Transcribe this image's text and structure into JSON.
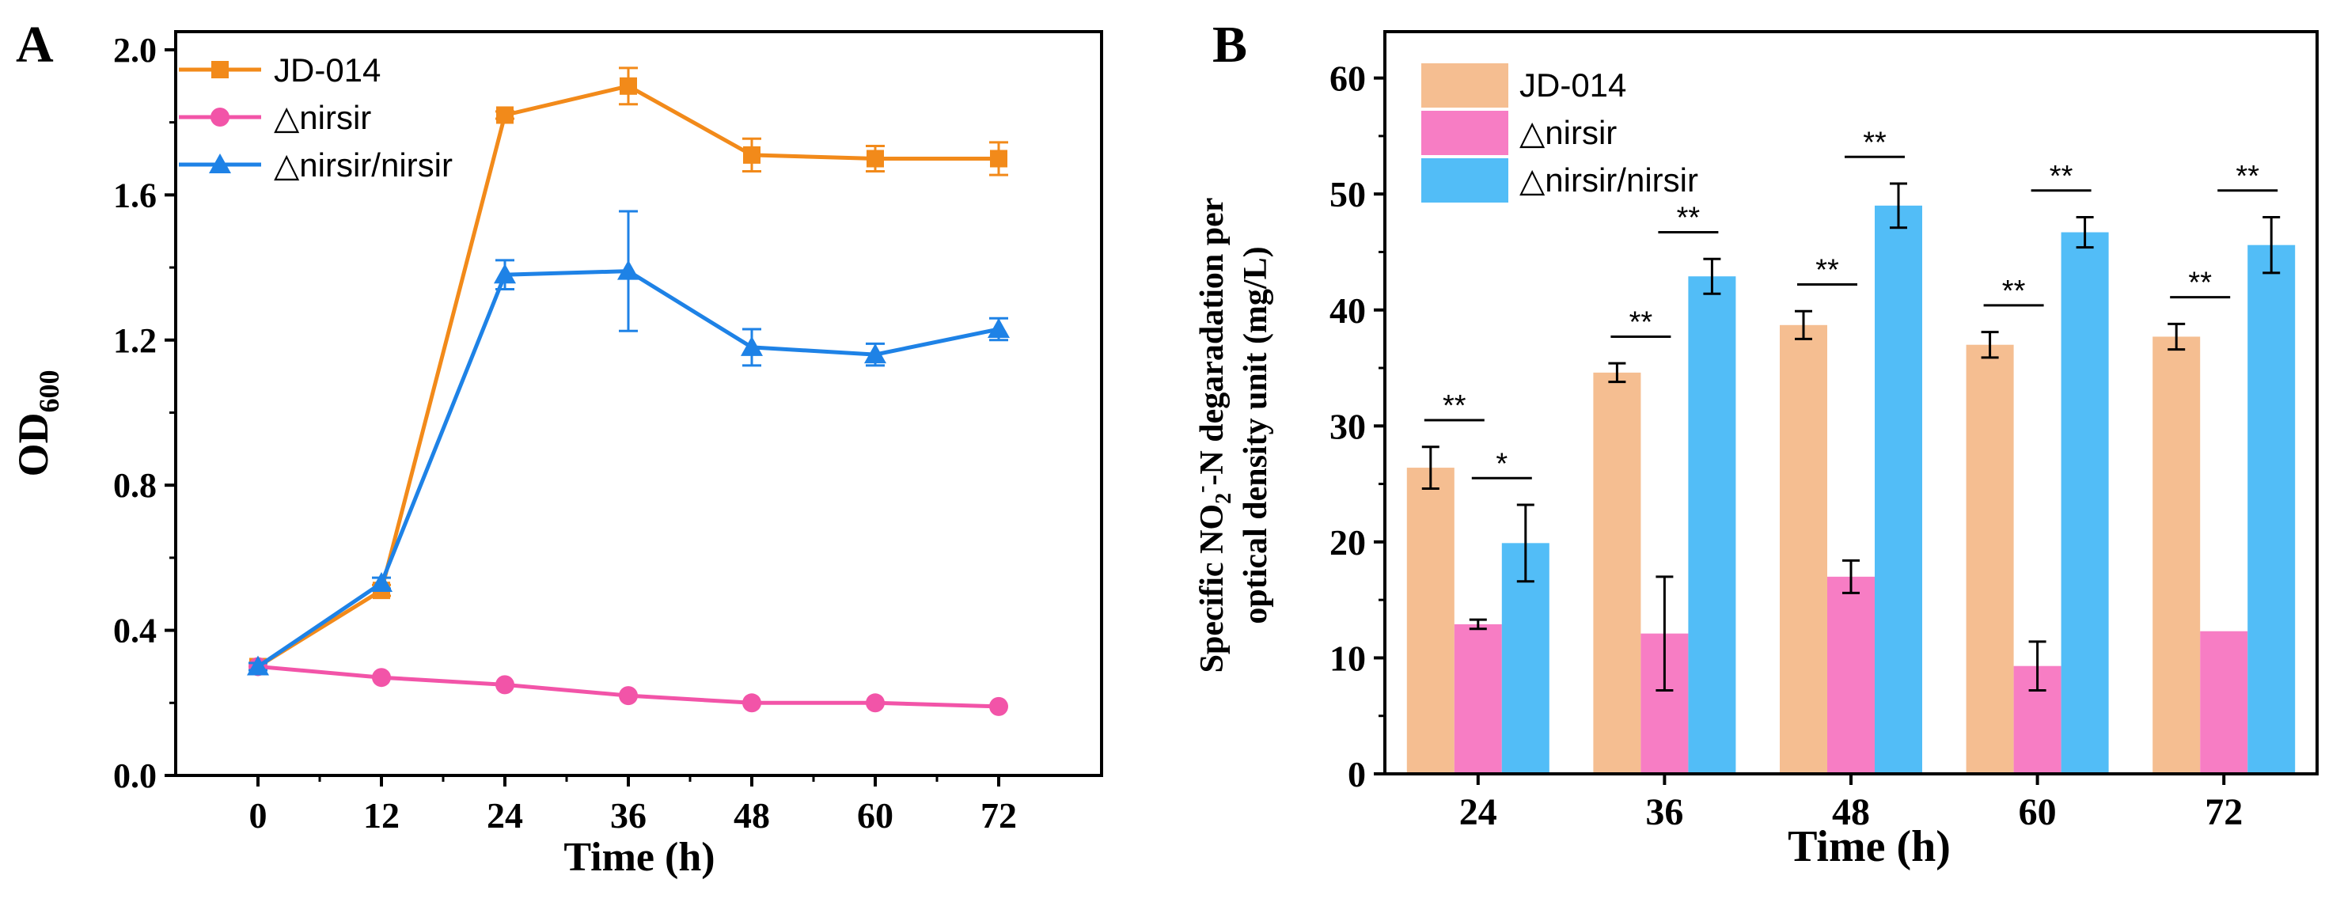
{
  "colors": {
    "jd014": "#F28A1A",
    "nirsir": "#F254A8",
    "comp": "#1E82E6",
    "jd014_bar": "#F5BE91",
    "nirsir_bar": "#F77DC4",
    "comp_bar": "#52BDF7",
    "axis": "#000000"
  },
  "chart_data": [
    {
      "panel": "A",
      "type": "line",
      "xlabel": "Time (h)",
      "ylabel_main": "OD",
      "ylabel_sub": "600",
      "xlim": [
        -8,
        82
      ],
      "ylim": [
        0,
        2.05
      ],
      "xticks": [
        0,
        12,
        24,
        36,
        48,
        60,
        72
      ],
      "yticks": [
        "0.0",
        "0.4",
        "0.8",
        "1.2",
        "1.6",
        "2.0"
      ],
      "legend_position": "top-left",
      "series": [
        {
          "name": "JD-014",
          "marker": "square",
          "x": [
            0,
            12,
            24,
            36,
            48,
            60,
            72
          ],
          "y": [
            0.3,
            0.51,
            1.82,
            1.9,
            1.71,
            1.7,
            1.7
          ],
          "err": [
            0.01,
            0.015,
            0.01,
            0.05,
            0.045,
            0.035,
            0.045
          ]
        },
        {
          "name": "△nirsir",
          "marker": "circle",
          "x": [
            0,
            12,
            24,
            36,
            48,
            60,
            72
          ],
          "y": [
            0.3,
            0.27,
            0.25,
            0.22,
            0.2,
            0.2,
            0.19
          ],
          "err": [
            0,
            0,
            0,
            0,
            0,
            0,
            0
          ]
        },
        {
          "name": "△nirsir/nirsir",
          "marker": "triangle",
          "x": [
            0,
            12,
            24,
            36,
            48,
            60,
            72
          ],
          "y": [
            0.3,
            0.53,
            1.38,
            1.39,
            1.18,
            1.16,
            1.23
          ],
          "err": [
            0.01,
            0.015,
            0.04,
            0.165,
            0.05,
            0.03,
            0.03
          ]
        }
      ]
    },
    {
      "panel": "B",
      "type": "bar",
      "xlabel": "Time (h)",
      "ylabel_line1_pre": "Specific NO",
      "ylabel_line1_sub": "2",
      "ylabel_line1_sup": "-",
      "ylabel_line1_post": "-N degaradation per",
      "ylabel_line2": "optical density unit (mg/L)",
      "categories": [
        "24",
        "36",
        "48",
        "60",
        "72"
      ],
      "ylim": [
        0,
        64
      ],
      "yticks": [
        "0",
        "10",
        "20",
        "30",
        "40",
        "50",
        "60"
      ],
      "legend_position": "top-left",
      "series": [
        {
          "name": "JD-014",
          "values": [
            26.4,
            34.6,
            38.7,
            37.0,
            37.7
          ],
          "err": [
            1.8,
            0.8,
            1.2,
            1.1,
            1.1
          ]
        },
        {
          "name": "△nirsir",
          "values": [
            12.9,
            12.1,
            17.0,
            9.3,
            12.3
          ],
          "err": [
            0.4,
            4.9,
            1.4,
            2.1,
            0
          ]
        },
        {
          "name": "△nirsir/nirsir",
          "values": [
            19.9,
            42.9,
            49.0,
            46.7,
            45.6
          ],
          "err": [
            3.3,
            1.5,
            1.9,
            1.3,
            2.4
          ]
        }
      ],
      "significance": [
        {
          "category": "24",
          "from": 0,
          "to": 1,
          "label": "**"
        },
        {
          "category": "24",
          "from": 1,
          "to": 2,
          "label": "*"
        },
        {
          "category": "36",
          "from": 0,
          "to": 1,
          "label": "**"
        },
        {
          "category": "36",
          "from": 1,
          "to": 2,
          "label": "**"
        },
        {
          "category": "48",
          "from": 0,
          "to": 1,
          "label": "**"
        },
        {
          "category": "48",
          "from": 1,
          "to": 2,
          "label": "**"
        },
        {
          "category": "60",
          "from": 0,
          "to": 1,
          "label": "**"
        },
        {
          "category": "60",
          "from": 1,
          "to": 2,
          "label": "**"
        },
        {
          "category": "72",
          "from": 0,
          "to": 1,
          "label": "**"
        },
        {
          "category": "72",
          "from": 1,
          "to": 2,
          "label": "**"
        }
      ]
    }
  ]
}
